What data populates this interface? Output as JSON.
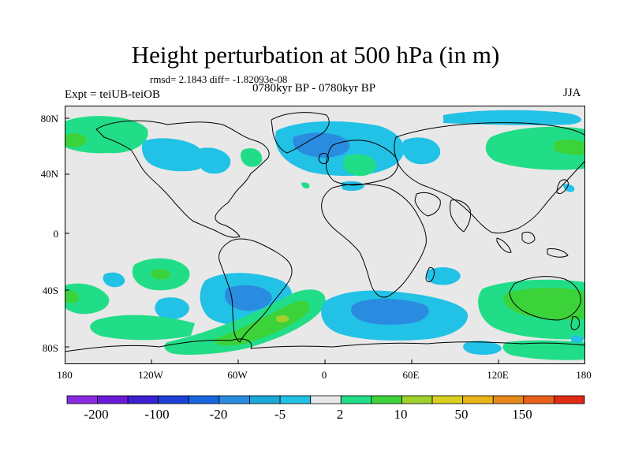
{
  "header": {
    "title": "Height perturbation at 500 hPa (in m)",
    "stats": "rmsd= 2.1843 diff= -1.82093e-08",
    "period": "0780kyr BP - 0780kyr BP",
    "experiment": "Expt = teiUB-teiOB",
    "season": "JJA"
  },
  "map": {
    "projection": "cylindrical equidistant",
    "lon_range": [
      -180,
      180
    ],
    "lat_range": [
      -90,
      90
    ],
    "lat_labels": [
      "80N",
      "40N",
      "0",
      "40S",
      "80S"
    ],
    "lon_labels": [
      "180",
      "120W",
      "60W",
      "0",
      "60E",
      "120E",
      "180"
    ],
    "background_color": "#e8e8e8",
    "coastline_color": "#000000"
  },
  "colorbar": {
    "colors": [
      "#8a2be2",
      "#6a1bd8",
      "#3c1fd0",
      "#1c3fd6",
      "#1a66e0",
      "#2a8ce0",
      "#1aa8d8",
      "#22c1e6",
      "#e8e8e8",
      "#22dd88",
      "#3cd23a",
      "#9ed22a",
      "#d8d020",
      "#e8b418",
      "#e8881a",
      "#e8601a",
      "#e02a14"
    ],
    "labels": [
      "-200",
      "-100",
      "-20",
      "-5",
      "2",
      "10",
      "50",
      "150"
    ]
  }
}
